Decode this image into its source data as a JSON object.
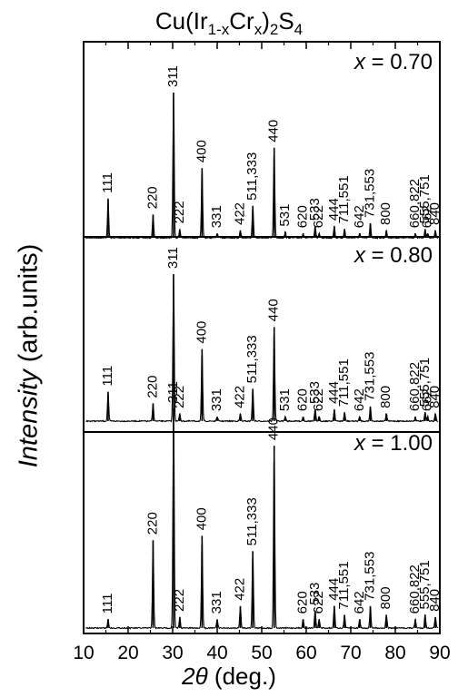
{
  "chart_data": {
    "type": "line",
    "title_parts": {
      "a": "Cu(Ir",
      "s1": "1-x",
      "b": "Cr",
      "s2": "x",
      "c": ")",
      "s3": "2",
      "d": "S",
      "s4": "4"
    },
    "xlabel_parts": {
      "symbol": "2θ",
      "rest": " (deg.)"
    },
    "ylabel_parts": {
      "italic": "Intensity",
      "rest": " (arb.units)"
    },
    "xlim": [
      10,
      90
    ],
    "xticks": [
      10,
      20,
      30,
      40,
      50,
      60,
      70,
      80,
      90
    ],
    "grid": false,
    "panels": [
      {
        "label": "x = 0.70",
        "peaks": [
          {
            "hkl": "111",
            "x": 15.5,
            "h": 0.27
          },
          {
            "hkl": "220",
            "x": 25.6,
            "h": 0.16
          },
          {
            "hkl": "311",
            "x": 30.2,
            "h": 1.0
          },
          {
            "hkl": "222",
            "x": 31.6,
            "h": 0.06
          },
          {
            "hkl": "400",
            "x": 36.6,
            "h": 0.48
          },
          {
            "hkl": "331",
            "x": 40.0,
            "h": 0.03
          },
          {
            "hkl": "422",
            "x": 45.2,
            "h": 0.05
          },
          {
            "hkl": "511,333",
            "x": 48.0,
            "h": 0.22
          },
          {
            "hkl": "440",
            "x": 52.8,
            "h": 0.62
          },
          {
            "hkl": "531",
            "x": 55.3,
            "h": 0.04
          },
          {
            "hkl": "620",
            "x": 59.3,
            "h": 0.03
          },
          {
            "hkl": "533",
            "x": 62.0,
            "h": 0.08
          },
          {
            "hkl": "622",
            "x": 62.9,
            "h": 0.03
          },
          {
            "hkl": "444",
            "x": 66.3,
            "h": 0.08
          },
          {
            "hkl": "711,551",
            "x": 68.6,
            "h": 0.06
          },
          {
            "hkl": "642",
            "x": 72.0,
            "h": 0.03
          },
          {
            "hkl": "731,553",
            "x": 74.4,
            "h": 0.1
          },
          {
            "hkl": "800",
            "x": 78.0,
            "h": 0.05
          },
          {
            "hkl": "660,822",
            "x": 84.5,
            "h": 0.03
          },
          {
            "hkl": "555,751",
            "x": 86.7,
            "h": 0.06
          },
          {
            "hkl": "662",
            "x": 87.3,
            "h": 0.03
          },
          {
            "hkl": "840",
            "x": 89.0,
            "h": 0.05
          }
        ]
      },
      {
        "label": "x = 0.80",
        "peaks": [
          {
            "hkl": "111",
            "x": 15.5,
            "h": 0.2
          },
          {
            "hkl": "220",
            "x": 25.6,
            "h": 0.12
          },
          {
            "hkl": "311",
            "x": 30.2,
            "h": 1.0
          },
          {
            "hkl": "222",
            "x": 31.6,
            "h": 0.05
          },
          {
            "hkl": "400",
            "x": 36.6,
            "h": 0.49
          },
          {
            "hkl": "331",
            "x": 40.0,
            "h": 0.03
          },
          {
            "hkl": "422",
            "x": 45.2,
            "h": 0.05
          },
          {
            "hkl": "511,333",
            "x": 48.0,
            "h": 0.22
          },
          {
            "hkl": "440",
            "x": 52.8,
            "h": 0.64
          },
          {
            "hkl": "531",
            "x": 55.3,
            "h": 0.03
          },
          {
            "hkl": "620",
            "x": 59.3,
            "h": 0.03
          },
          {
            "hkl": "533",
            "x": 62.0,
            "h": 0.08
          },
          {
            "hkl": "622",
            "x": 62.9,
            "h": 0.03
          },
          {
            "hkl": "444",
            "x": 66.3,
            "h": 0.08
          },
          {
            "hkl": "711,551",
            "x": 68.6,
            "h": 0.06
          },
          {
            "hkl": "642",
            "x": 72.0,
            "h": 0.03
          },
          {
            "hkl": "731,553",
            "x": 74.4,
            "h": 0.1
          },
          {
            "hkl": "800",
            "x": 78.0,
            "h": 0.05
          },
          {
            "hkl": "660,822",
            "x": 84.5,
            "h": 0.03
          },
          {
            "hkl": "555,751",
            "x": 86.7,
            "h": 0.06
          },
          {
            "hkl": "662",
            "x": 87.3,
            "h": 0.03
          },
          {
            "hkl": "840",
            "x": 89.0,
            "h": 0.05
          }
        ]
      },
      {
        "label": "x = 1.00",
        "peaks": [
          {
            "hkl": "111",
            "x": 15.5,
            "h": 0.04
          },
          {
            "hkl": "220",
            "x": 25.6,
            "h": 0.4
          },
          {
            "hkl": "311",
            "x": 30.2,
            "h": 1.0
          },
          {
            "hkl": "222",
            "x": 31.6,
            "h": 0.05
          },
          {
            "hkl": "400",
            "x": 36.6,
            "h": 0.42
          },
          {
            "hkl": "331",
            "x": 40.0,
            "h": 0.04
          },
          {
            "hkl": "422",
            "x": 45.2,
            "h": 0.1
          },
          {
            "hkl": "511,333",
            "x": 48.0,
            "h": 0.35
          },
          {
            "hkl": "440",
            "x": 52.8,
            "h": 0.83
          },
          {
            "hkl": "620",
            "x": 59.3,
            "h": 0.04
          },
          {
            "hkl": "533",
            "x": 62.0,
            "h": 0.08
          },
          {
            "hkl": "622",
            "x": 62.9,
            "h": 0.04
          },
          {
            "hkl": "444",
            "x": 66.3,
            "h": 0.1
          },
          {
            "hkl": "711,551",
            "x": 68.6,
            "h": 0.06
          },
          {
            "hkl": "642",
            "x": 72.0,
            "h": 0.04
          },
          {
            "hkl": "731,553",
            "x": 74.4,
            "h": 0.1
          },
          {
            "hkl": "800",
            "x": 78.0,
            "h": 0.06
          },
          {
            "hkl": "660,822",
            "x": 84.5,
            "h": 0.04
          },
          {
            "hkl": "555,751",
            "x": 86.7,
            "h": 0.06
          },
          {
            "hkl": "840",
            "x": 89.0,
            "h": 0.05
          }
        ]
      }
    ]
  }
}
